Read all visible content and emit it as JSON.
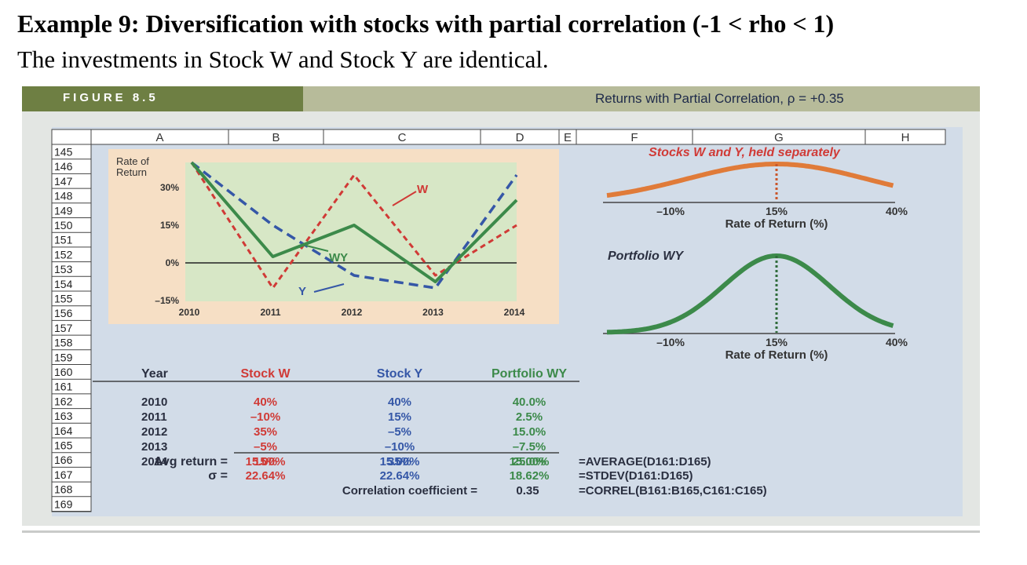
{
  "header": {
    "title": "Example 9: Diversification with stocks with partial correlation (-1 < rho < 1)",
    "subtitle": "The investments in Stock W and Stock Y are identical."
  },
  "figure": {
    "label": "FIGURE 8.5",
    "caption": "Returns with Partial Correlation, ρ = +0.35"
  },
  "spreadsheet": {
    "columns": [
      "A",
      "B",
      "C",
      "D",
      "E",
      "F",
      "G",
      "H"
    ],
    "rows": [
      "145",
      "146",
      "147",
      "148",
      "149",
      "150",
      "151",
      "152",
      "153",
      "154",
      "155",
      "156",
      "157",
      "158",
      "159",
      "160",
      "161",
      "162",
      "163",
      "164",
      "165",
      "166",
      "167",
      "168",
      "169"
    ]
  },
  "colors": {
    "w": "#d03a36",
    "y": "#3557a7",
    "wy": "#3c8a4a",
    "orange": "#e07b39",
    "green_curve": "#3c8a4a"
  },
  "chart_data": [
    {
      "type": "line",
      "ylabel": "Rate of Return",
      "ytick_labels": [
        "30%",
        "15%",
        "0%",
        "–15%"
      ],
      "ylim": [
        -15,
        45
      ],
      "categories": [
        "2010",
        "2011",
        "2012",
        "2013",
        "2014"
      ],
      "series": [
        {
          "name": "W",
          "label": "W",
          "values": [
            40,
            -10,
            35,
            -5,
            15
          ]
        },
        {
          "name": "Y",
          "label": "Y",
          "values": [
            40,
            15,
            -5,
            -10,
            35
          ]
        },
        {
          "name": "WY",
          "label": "WY",
          "values": [
            40,
            2.5,
            15,
            -7.5,
            25
          ]
        }
      ]
    },
    {
      "type": "line",
      "title": "Stocks W and Y, held separately",
      "xlabel": "Rate of Return (%)",
      "xtick_labels": [
        "–10%",
        "15%",
        "40%"
      ],
      "mean": 15,
      "std": 22.64
    },
    {
      "type": "line",
      "title": "Portfolio WY",
      "xlabel": "Rate of Return (%)",
      "xtick_labels": [
        "–10%",
        "15%",
        "40%"
      ],
      "mean": 15,
      "std": 18.62
    },
    {
      "type": "table",
      "headers": [
        "Year",
        "Stock W",
        "Stock Y",
        "Portfolio WY"
      ],
      "rows": [
        [
          "2010",
          "40%",
          "40%",
          "40.0%"
        ],
        [
          "2011",
          "–10%",
          "15%",
          "2.5%"
        ],
        [
          "2012",
          "35%",
          "–5%",
          "15.0%"
        ],
        [
          "2013",
          "–5%",
          "–10%",
          "–7.5%"
        ],
        [
          "2014",
          "15%",
          "35%",
          "25.0%"
        ]
      ],
      "avg_label": "Avg return =",
      "avg": [
        "15.00%",
        "15.00%",
        "15.00%"
      ],
      "avg_formula": "=AVERAGE(D161:D165)",
      "sigma_label": "σ =",
      "sigma": [
        "22.64%",
        "22.64%",
        "18.62%"
      ],
      "sigma_formula": "=STDEV(D161:D165)",
      "corr_label": "Correlation coefficient =",
      "corr": "0.35",
      "corr_formula": "=CORREL(B161:B165,C161:C165)"
    }
  ]
}
